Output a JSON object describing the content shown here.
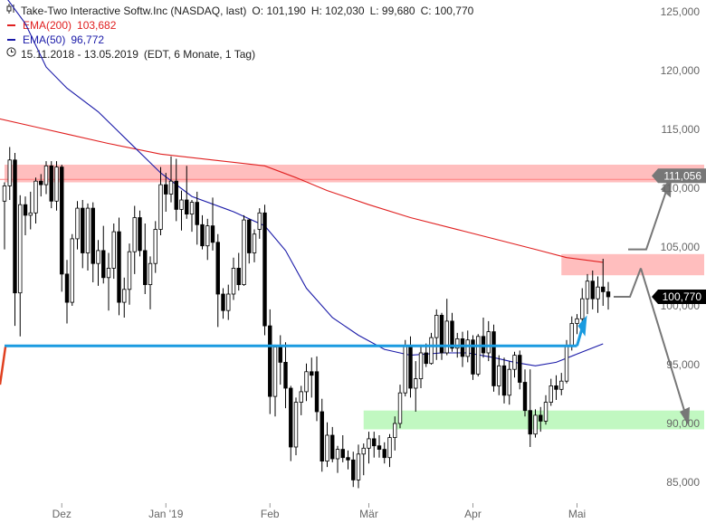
{
  "legend": {
    "title": "Take-Two Interactive Softw.Inc (NASDAQ, last)",
    "ohlc": {
      "O": "101,190",
      "H": "102,030",
      "L": "99,680",
      "C": "100,770"
    },
    "ema200": {
      "label": "EMA(200)",
      "value": "103,682",
      "color": "#e02020"
    },
    "ema50": {
      "label": "EMA(50)",
      "value": "96,772",
      "color": "#1a1aa8"
    },
    "period": "15.11.2018 - 13.05.2019",
    "period_detail": "(EDT, 6 Monate, 1 Tag)"
  },
  "chart_data": {
    "type": "candlestick",
    "ylim": [
      84000,
      126000
    ],
    "y_ticks": [
      {
        "value": 85000,
        "label": "85,000"
      },
      {
        "value": 90000,
        "label": "90,000"
      },
      {
        "value": 95000,
        "label": "95,000"
      },
      {
        "value": 100000,
        "label": "100,000"
      },
      {
        "value": 105000,
        "label": "105,000"
      },
      {
        "value": 110000,
        "label": "110,000"
      },
      {
        "value": 115000,
        "label": "115,000"
      },
      {
        "value": 120000,
        "label": "120,000"
      },
      {
        "value": 125000,
        "label": "125,000"
      }
    ],
    "x_ticks": [
      {
        "index": 11,
        "label": "Dez"
      },
      {
        "index": 31,
        "label": "Jan '19"
      },
      {
        "index": 51,
        "label": "Feb"
      },
      {
        "index": 70,
        "label": "Mär"
      },
      {
        "index": 90,
        "label": "Apr"
      },
      {
        "index": 110,
        "label": "Mai"
      }
    ],
    "price_tags": [
      {
        "value": 111056,
        "label": "111,056",
        "style": "gray"
      },
      {
        "value": 100770,
        "label": "100,770",
        "style": "black"
      }
    ],
    "zones": [
      {
        "name": "resistance",
        "y0": 110500,
        "y1": 112000,
        "i0": 0,
        "i1": 135,
        "color": "#ffb3b3"
      },
      {
        "name": "resistance-small",
        "y0": 102600,
        "y1": 104400,
        "i0": 107,
        "i1": 140,
        "color": "#ffb3b3"
      },
      {
        "name": "support",
        "y0": 89500,
        "y1": 91100,
        "i0": 69,
        "i1": 135,
        "color": "#b6f7b6"
      }
    ],
    "trendline": {
      "i0": 0,
      "v0": 96600,
      "i1": 110,
      "v1": 96600,
      "color": "#1a9be0"
    },
    "ema200": [
      [
        -1,
        115900
      ],
      [
        6,
        115200
      ],
      [
        12,
        114600
      ],
      [
        20,
        113800
      ],
      [
        30,
        112900
      ],
      [
        40,
        112400
      ],
      [
        50,
        111900
      ],
      [
        56,
        110900
      ],
      [
        62,
        109800
      ],
      [
        70,
        108600
      ],
      [
        78,
        107500
      ],
      [
        86,
        106600
      ],
      [
        94,
        105700
      ],
      [
        102,
        104800
      ],
      [
        108,
        104100
      ],
      [
        115,
        103700
      ]
    ],
    "ema50": [
      [
        -1,
        127000
      ],
      [
        4,
        124000
      ],
      [
        8,
        120300
      ],
      [
        12,
        118500
      ],
      [
        18,
        116500
      ],
      [
        24,
        113900
      ],
      [
        30,
        111300
      ],
      [
        36,
        109300
      ],
      [
        44,
        108000
      ],
      [
        50,
        106800
      ],
      [
        54,
        104700
      ],
      [
        58,
        101500
      ],
      [
        63,
        99000
      ],
      [
        68,
        97500
      ],
      [
        73,
        96300
      ],
      [
        78,
        95800
      ],
      [
        84,
        96000
      ],
      [
        89,
        96000
      ],
      [
        94,
        95600
      ],
      [
        98,
        95200
      ],
      [
        102,
        94900
      ],
      [
        106,
        95200
      ],
      [
        110,
        95900
      ],
      [
        115,
        96772
      ]
    ],
    "candles": [
      [
        108900,
        110500,
        104800,
        110200
      ],
      [
        110200,
        113500,
        109000,
        112400
      ],
      [
        112400,
        113000,
        98300,
        101100
      ],
      [
        101100,
        109400,
        97400,
        108600
      ],
      [
        108600,
        109300,
        106000,
        107700
      ],
      [
        107700,
        109700,
        106500,
        107900
      ],
      [
        107900,
        110900,
        107000,
        110600
      ],
      [
        110600,
        111200,
        109300,
        110300
      ],
      [
        110300,
        112300,
        109500,
        111900
      ],
      [
        111900,
        112300,
        108300,
        108900
      ],
      [
        108900,
        112300,
        108100,
        111800
      ],
      [
        111800,
        112000,
        101200,
        102700
      ],
      [
        102700,
        103900,
        98500,
        100300
      ],
      [
        100300,
        106100,
        100000,
        105700
      ],
      [
        105700,
        108900,
        104800,
        108300
      ],
      [
        108300,
        109000,
        103200,
        104500
      ],
      [
        104500,
        108700,
        103000,
        108300
      ],
      [
        108300,
        108800,
        102000,
        103600
      ],
      [
        103600,
        105600,
        101700,
        104700
      ],
      [
        104700,
        106800,
        101900,
        102400
      ],
      [
        102400,
        104500,
        99600,
        103200
      ],
      [
        103200,
        107000,
        102300,
        106300
      ],
      [
        106300,
        107500,
        99200,
        100300
      ],
      [
        100300,
        102400,
        99000,
        101400
      ],
      [
        101400,
        105300,
        100100,
        104600
      ],
      [
        104600,
        108500,
        102700,
        107500
      ],
      [
        107500,
        108100,
        104200,
        104700
      ],
      [
        104700,
        107000,
        101000,
        101800
      ],
      [
        101800,
        104200,
        99700,
        103600
      ],
      [
        103600,
        107200,
        102800,
        106500
      ],
      [
        106500,
        111800,
        106000,
        110300
      ],
      [
        110300,
        111300,
        108000,
        109500
      ],
      [
        109500,
        112700,
        108800,
        110600
      ],
      [
        110600,
        112500,
        107200,
        108200
      ],
      [
        108200,
        109800,
        106400,
        109000
      ],
      [
        109000,
        111900,
        107400,
        107800
      ],
      [
        107800,
        109000,
        106300,
        108800
      ],
      [
        108800,
        109700,
        105200,
        106900
      ],
      [
        106900,
        107700,
        104800,
        105100
      ],
      [
        105100,
        107400,
        103900,
        106800
      ],
      [
        106800,
        109200,
        104700,
        105400
      ],
      [
        105400,
        106100,
        98200,
        101000
      ],
      [
        101000,
        101500,
        98900,
        99600
      ],
      [
        99600,
        101800,
        98800,
        101000
      ],
      [
        101000,
        104100,
        100500,
        103200
      ],
      [
        103200,
        104500,
        101300,
        101800
      ],
      [
        101800,
        107700,
        101700,
        107300
      ],
      [
        107300,
        107400,
        103600,
        104500
      ],
      [
        104500,
        106500,
        103700,
        106100
      ],
      [
        106500,
        108300,
        105700,
        107900
      ],
      [
        107900,
        108600,
        97500,
        98300
      ],
      [
        98300,
        99700,
        90800,
        92300
      ],
      [
        92300,
        96700,
        90600,
        96500
      ],
      [
        96500,
        97500,
        93300,
        95200
      ],
      [
        95200,
        96900,
        91300,
        93000
      ],
      [
        93000,
        93200,
        86800,
        88000
      ],
      [
        88000,
        92200,
        87300,
        91800
      ],
      [
        91800,
        93200,
        90700,
        92700
      ],
      [
        92700,
        95100,
        91900,
        94400
      ],
      [
        94400,
        95600,
        92200,
        94100
      ],
      [
        94400,
        95700,
        90200,
        91000
      ],
      [
        91000,
        92100,
        85900,
        86800
      ],
      [
        86800,
        90100,
        86300,
        89000
      ],
      [
        89000,
        89700,
        86700,
        87000
      ],
      [
        87000,
        88100,
        85800,
        87800
      ],
      [
        87800,
        89000,
        86700,
        87100
      ],
      [
        87100,
        87700,
        86100,
        86900
      ],
      [
        86900,
        87600,
        84600,
        85200
      ],
      [
        85200,
        88200,
        84500,
        87400
      ],
      [
        87400,
        88300,
        85600,
        87900
      ],
      [
        87900,
        89300,
        86600,
        88700
      ],
      [
        88700,
        89300,
        87100,
        88100
      ],
      [
        88100,
        89000,
        87100,
        87800
      ],
      [
        87800,
        88400,
        86600,
        87100
      ],
      [
        87100,
        89100,
        86300,
        88800
      ],
      [
        88800,
        90600,
        87700,
        90000
      ],
      [
        90000,
        93300,
        89600,
        92600
      ],
      [
        92600,
        97100,
        92300,
        96600
      ],
      [
        96600,
        97400,
        92200,
        93000
      ],
      [
        93000,
        95300,
        91000,
        93800
      ],
      [
        93800,
        96700,
        93000,
        96000
      ],
      [
        96000,
        96800,
        94800,
        95100
      ],
      [
        95100,
        97700,
        95000,
        97300
      ],
      [
        97300,
        99700,
        95400,
        99200
      ],
      [
        99200,
        99400,
        95400,
        96000
      ],
      [
        96000,
        100600,
        95800,
        98700
      ],
      [
        98700,
        99400,
        96100,
        96400
      ],
      [
        96400,
        97700,
        95600,
        97200
      ],
      [
        97200,
        97800,
        94800,
        95700
      ],
      [
        95700,
        97900,
        95200,
        97100
      ],
      [
        97100,
        97500,
        93700,
        94200
      ],
      [
        94200,
        97600,
        94000,
        97400
      ],
      [
        97400,
        99000,
        95600,
        96000
      ],
      [
        96000,
        98700,
        95300,
        97800
      ],
      [
        97800,
        98400,
        92700,
        93200
      ],
      [
        93200,
        95800,
        92400,
        94900
      ],
      [
        94900,
        95600,
        91700,
        92400
      ],
      [
        92400,
        95300,
        91600,
        94600
      ],
      [
        94600,
        96100,
        93900,
        95800
      ],
      [
        95800,
        96200,
        92900,
        93500
      ],
      [
        93500,
        94600,
        90600,
        91100
      ],
      [
        91100,
        94600,
        88000,
        89100
      ],
      [
        89100,
        91200,
        88800,
        90700
      ],
      [
        90700,
        91400,
        89300,
        90200
      ],
      [
        90200,
        92400,
        89900,
        91800
      ],
      [
        91800,
        93800,
        91500,
        93200
      ],
      [
        93200,
        94100,
        92000,
        92900
      ],
      [
        92900,
        94300,
        92400,
        93600
      ],
      [
        93600,
        97100,
        93400,
        96600
      ],
      [
        96600,
        99100,
        96200,
        98500
      ],
      [
        98500,
        99300,
        97600,
        98900
      ],
      [
        98900,
        101500,
        98200,
        100600
      ],
      [
        100600,
        102700,
        99300,
        102100
      ],
      [
        102100,
        103000,
        99700,
        100600
      ],
      [
        100600,
        102500,
        99400,
        101600
      ],
      [
        101600,
        104000,
        100000,
        101200
      ],
      [
        101190,
        102030,
        99680,
        100770
      ]
    ]
  }
}
